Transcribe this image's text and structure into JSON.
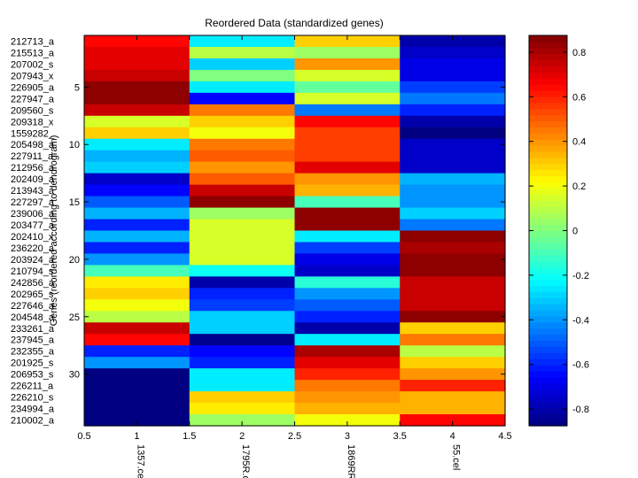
{
  "chart_data": {
    "type": "heatmap",
    "title": "Reordered Data (standardized genes)",
    "xlabel": "",
    "ylabel": "Genes (reordered according to dendrogram)",
    "xlim": [
      0.5,
      4.5
    ],
    "x_ticks": [
      "0.5",
      "1",
      "1.5",
      "2",
      "2.5",
      "3",
      "3.5",
      "4",
      "4.5"
    ],
    "columns": [
      "1357.cel",
      "1795R.c",
      "1869RR",
      "55.cel"
    ],
    "row_labels": [
      "212713_a",
      "215513_a",
      "207002_s",
      "207943_x",
      "226905_a",
      "227947_a",
      "209560_s",
      "209318_x",
      "1559282_",
      "205498_a",
      "227911_a",
      "212956_a",
      "202409_a",
      "213943_a",
      "227297_a",
      "239006_a",
      "203477_a",
      "202410_x",
      "236220_a",
      "203924_a",
      "210794_s",
      "242856_a",
      "202965_s",
      "227646_a",
      "204548_a",
      "233261_a",
      "237945_a",
      "232355_a",
      "201925_s",
      "206953_s",
      "226211_a",
      "226210_s",
      "234994_a",
      "210002_a"
    ],
    "row_number_ticks": [
      "5",
      "10",
      "15",
      "20",
      "25",
      "30"
    ],
    "values": [
      [
        0.65,
        -0.25,
        0.3,
        -0.8
      ],
      [
        0.7,
        0.1,
        0.05,
        -0.75
      ],
      [
        0.7,
        -0.3,
        0.4,
        -0.7
      ],
      [
        0.75,
        0.0,
        0.15,
        -0.7
      ],
      [
        0.85,
        -0.25,
        -0.05,
        -0.55
      ],
      [
        0.85,
        -0.65,
        0.15,
        -0.45
      ],
      [
        0.75,
        0.45,
        -0.45,
        -0.6
      ],
      [
        0.15,
        0.3,
        0.65,
        -0.8
      ],
      [
        0.3,
        0.2,
        0.55,
        -0.9
      ],
      [
        -0.25,
        0.45,
        0.55,
        -0.75
      ],
      [
        -0.35,
        0.5,
        0.55,
        -0.75
      ],
      [
        -0.3,
        0.4,
        0.7,
        -0.75
      ],
      [
        -0.75,
        0.5,
        0.4,
        -0.35
      ],
      [
        -0.65,
        0.75,
        0.35,
        -0.4
      ],
      [
        -0.5,
        0.85,
        -0.1,
        -0.4
      ],
      [
        -0.35,
        0.05,
        0.85,
        -0.3
      ],
      [
        -0.6,
        0.15,
        0.85,
        -0.45
      ],
      [
        -0.35,
        0.15,
        -0.25,
        0.85
      ],
      [
        -0.6,
        0.15,
        -0.55,
        0.8
      ],
      [
        -0.4,
        0.15,
        -0.7,
        0.85
      ],
      [
        -0.1,
        -0.2,
        -0.75,
        0.85
      ],
      [
        0.25,
        -0.8,
        -0.15,
        0.75
      ],
      [
        0.3,
        -0.6,
        -0.4,
        0.75
      ],
      [
        0.2,
        -0.55,
        -0.5,
        0.75
      ],
      [
        0.1,
        -0.3,
        -0.6,
        0.85
      ],
      [
        0.75,
        -0.3,
        -0.8,
        0.3
      ],
      [
        0.65,
        -0.85,
        -0.25,
        0.45
      ],
      [
        -0.6,
        -0.65,
        0.8,
        0.1
      ],
      [
        -0.4,
        -0.6,
        0.7,
        0.3
      ],
      [
        -0.9,
        -0.25,
        0.6,
        0.4
      ],
      [
        -0.9,
        -0.25,
        0.45,
        0.6
      ],
      [
        -0.9,
        0.3,
        0.4,
        0.35
      ],
      [
        -0.9,
        0.25,
        0.35,
        0.35
      ],
      [
        -0.9,
        0.05,
        0.2,
        0.65
      ]
    ],
    "colorbar": {
      "range": [
        -0.875,
        0.875
      ],
      "ticks": [
        -0.8,
        -0.6,
        -0.4,
        -0.2,
        0,
        0.2,
        0.4,
        0.6,
        0.8
      ],
      "tick_labels": [
        "-0.8",
        "-0.6",
        "-0.4",
        "-0.2",
        "0",
        "0.2",
        "0.4",
        "0.6",
        "0.8"
      ],
      "colormap": "jet"
    }
  }
}
